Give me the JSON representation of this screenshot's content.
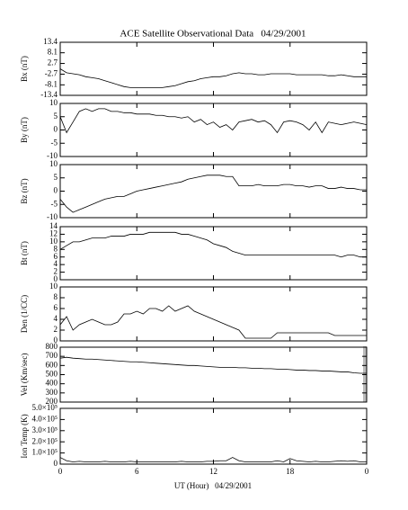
{
  "title": "ACE Satellite Observational Data   04/29/2001",
  "xlabel": "UT (Hour)   04/29/2001",
  "xlim": [
    0,
    24
  ],
  "xticks": [
    0,
    6,
    12,
    18,
    {
      "value": 24,
      "label": "0"
    }
  ],
  "x": [
    0,
    0.5,
    1,
    1.5,
    2,
    2.5,
    3,
    3.5,
    4,
    4.5,
    5,
    5.5,
    6,
    6.5,
    7,
    7.5,
    8,
    8.5,
    9,
    9.5,
    10,
    10.5,
    11,
    11.5,
    12,
    12.5,
    13,
    13.5,
    14,
    14.5,
    15,
    15.5,
    16,
    16.5,
    17,
    17.5,
    18,
    18.5,
    19,
    19.5,
    20,
    20.5,
    21,
    21.5,
    22,
    22.5,
    23,
    23.5,
    24
  ],
  "chart_data": [
    {
      "type": "line",
      "ylabel": "Bx (nT)",
      "color": "#000000",
      "ylim": [
        -13.4,
        13.4
      ],
      "yticks": [
        -13.4,
        -8.1,
        -2.7,
        2.7,
        8.1,
        13.4
      ],
      "values": [
        0,
        -2,
        -2.5,
        -3,
        -4,
        -4.5,
        -5,
        -6,
        -7,
        -8,
        -9,
        -9.5,
        -9.5,
        -9.5,
        -9.5,
        -9.5,
        -9.5,
        -9,
        -8.5,
        -7.5,
        -6.5,
        -6,
        -5,
        -4.5,
        -4,
        -4,
        -3.5,
        -2.5,
        -2,
        -2.5,
        -2.5,
        -3,
        -3,
        -2.5,
        -2.5,
        -2.5,
        -2.5,
        -3,
        -3,
        -3,
        -3,
        -3,
        -3.5,
        -3.5,
        -3,
        -3.5,
        -4,
        -4,
        -4
      ]
    },
    {
      "type": "line",
      "ylabel": "By (nT)",
      "color": "#000000",
      "ylim": [
        -10,
        10
      ],
      "yticks": [
        -10,
        -5,
        0,
        5,
        10
      ],
      "values": [
        5,
        -1,
        3,
        7,
        8,
        7,
        8,
        8,
        7,
        7,
        6.5,
        6.5,
        6,
        6,
        6,
        5.5,
        5.5,
        5,
        5,
        4.5,
        5,
        3,
        4,
        2,
        3,
        1,
        2,
        0,
        3,
        3.5,
        4,
        3,
        3.5,
        2,
        -1,
        3,
        3.5,
        3,
        2,
        0,
        3,
        -1,
        3,
        2.5,
        2,
        2.5,
        3,
        2.5,
        2
      ]
    },
    {
      "type": "line",
      "ylabel": "Bz (nT)",
      "color": "#000000",
      "ylim": [
        -10,
        10
      ],
      "yticks": [
        -10,
        -5,
        0,
        5,
        10
      ],
      "values": [
        -3,
        -6,
        -8,
        -7,
        -6,
        -5,
        -4,
        -3,
        -2.5,
        -2,
        -2,
        -1,
        0,
        0.5,
        1,
        1.5,
        2,
        2.5,
        3,
        3.5,
        4.5,
        5,
        5.5,
        6,
        6,
        6,
        5.5,
        5.5,
        2,
        2,
        2,
        2.5,
        2,
        2,
        2,
        2.5,
        2.5,
        2,
        2,
        1.5,
        2,
        2,
        1,
        1,
        1.5,
        1,
        1,
        0.5,
        0.5
      ]
    },
    {
      "type": "line",
      "ylabel": "Bt (nT)",
      "color": "#000000",
      "ylim": [
        0,
        14
      ],
      "yticks": [
        0,
        2,
        4,
        6,
        8,
        10,
        12,
        14
      ],
      "values": [
        8,
        9,
        10,
        10,
        10.5,
        11,
        11,
        11,
        11.5,
        11.5,
        11.5,
        12,
        12,
        12,
        12.5,
        12.5,
        12.5,
        12.5,
        12.5,
        12,
        12,
        11.5,
        11,
        10.5,
        9.5,
        9,
        8.5,
        7.5,
        7,
        6.5,
        6.5,
        6.5,
        6.5,
        6.5,
        6.5,
        6.5,
        6.5,
        6.5,
        6.5,
        6.5,
        6.5,
        6.5,
        6.5,
        6.5,
        6,
        6.5,
        6.5,
        6,
        6
      ]
    },
    {
      "type": "line",
      "ylabel": "Den (1/CC)",
      "color": "#000000",
      "ylim": [
        0,
        10
      ],
      "yticks": [
        0,
        2,
        4,
        6,
        8,
        10
      ],
      "values": [
        3,
        4.5,
        2,
        3,
        3.5,
        4,
        3.5,
        3,
        3,
        3.5,
        5,
        5,
        5.5,
        5,
        6,
        6,
        5.5,
        6.5,
        5.5,
        6,
        6.5,
        5.5,
        5,
        4.5,
        4,
        3.5,
        3,
        2.5,
        2,
        0.5,
        0.5,
        0.5,
        0.5,
        0.5,
        1.5,
        1.5,
        1.5,
        1.5,
        1.5,
        1.5,
        1.5,
        1.5,
        1.5,
        1,
        1,
        1,
        1,
        1,
        1
      ]
    },
    {
      "type": "line",
      "ylabel": "Vel (Km/sec)",
      "color": "#000000",
      "ylim": [
        200,
        800
      ],
      "yticks": [
        200,
        300,
        400,
        500,
        600,
        700,
        800
      ],
      "values": [
        680,
        690,
        680,
        675,
        670,
        670,
        665,
        660,
        655,
        650,
        645,
        640,
        640,
        635,
        630,
        625,
        620,
        615,
        610,
        605,
        600,
        600,
        595,
        590,
        585,
        580,
        580,
        580,
        575,
        575,
        570,
        570,
        565,
        565,
        560,
        560,
        555,
        550,
        550,
        545,
        545,
        540,
        540,
        535,
        530,
        530,
        520,
        515,
        515
      ]
    },
    {
      "type": "line",
      "ylabel": "Ion Temp (K)",
      "color": "#000000",
      "ylim": [
        0,
        500000
      ],
      "yticks": [
        0,
        {
          "value": 100000,
          "label": "1.0×10⁵"
        },
        {
          "value": 200000,
          "label": "2.0×10⁵"
        },
        {
          "value": 300000,
          "label": "3.0×10⁵"
        },
        {
          "value": 400000,
          "label": "4.0×10⁵"
        },
        {
          "value": 500000,
          "label": "5.0×10⁵"
        }
      ],
      "values": [
        60000,
        30000,
        20000,
        25000,
        20000,
        20000,
        20000,
        25000,
        20000,
        20000,
        20000,
        25000,
        20000,
        20000,
        20000,
        20000,
        20000,
        20000,
        20000,
        25000,
        20000,
        20000,
        20000,
        25000,
        25000,
        30000,
        30000,
        60000,
        30000,
        20000,
        20000,
        20000,
        20000,
        20000,
        30000,
        20000,
        50000,
        30000,
        25000,
        20000,
        25000,
        20000,
        20000,
        25000,
        30000,
        25000,
        30000,
        20000,
        20000
      ]
    }
  ]
}
